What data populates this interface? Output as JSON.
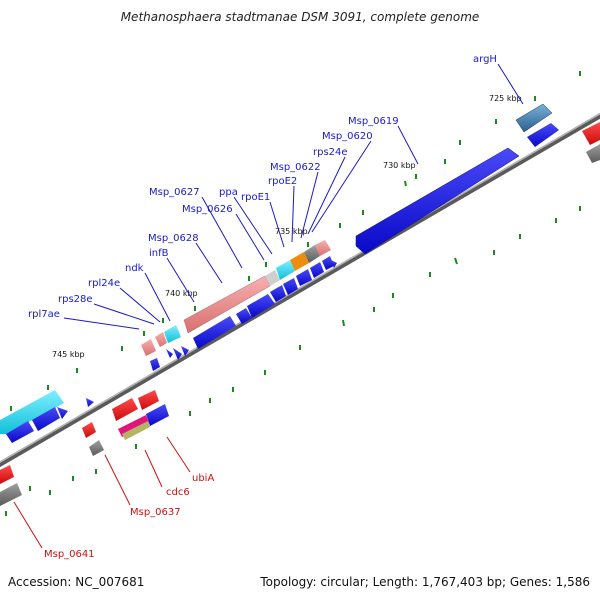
{
  "title": "Methanosphaera stadtmanae DSM 3091, complete genome",
  "accession": "Accession: NC_007681",
  "summary": "Topology: circular; Length: 1,767,403 bp; Genes: 1,586",
  "ticks": [
    "725 kbp",
    "730 kbp",
    "735 kbp",
    "740 kbp",
    "745 kbp"
  ],
  "labels_forward": [
    "argH",
    "Msp_0619",
    "Msp_0620",
    "rps24e",
    "Msp_0622",
    "rpoE2",
    "rpoE1",
    "ppa",
    "Msp_0626",
    "Msp_0627",
    "Msp_0628",
    "infB",
    "ndk",
    "rpl24e",
    "rps28e",
    "rpl7ae"
  ],
  "labels_reverse": [
    "ubiA",
    "cdc6",
    "Msp_0637",
    "Msp_0641"
  ],
  "colors": {
    "forward_label": "#1a1acc",
    "reverse_label": "#cc1111",
    "backbone": "#808080",
    "cds_blue": "#1010e0",
    "cds_red": "#ee1111",
    "cds_pink": "#e88c8c",
    "cds_cyan": "#22d6ee",
    "cds_orange": "#ee8c10",
    "cds_gray": "#777777",
    "cds_steel": "#3c78a8",
    "cds_magenta": "#e0147a",
    "cds_olive": "#b4b464",
    "tick_green": "#1a8a1a"
  }
}
